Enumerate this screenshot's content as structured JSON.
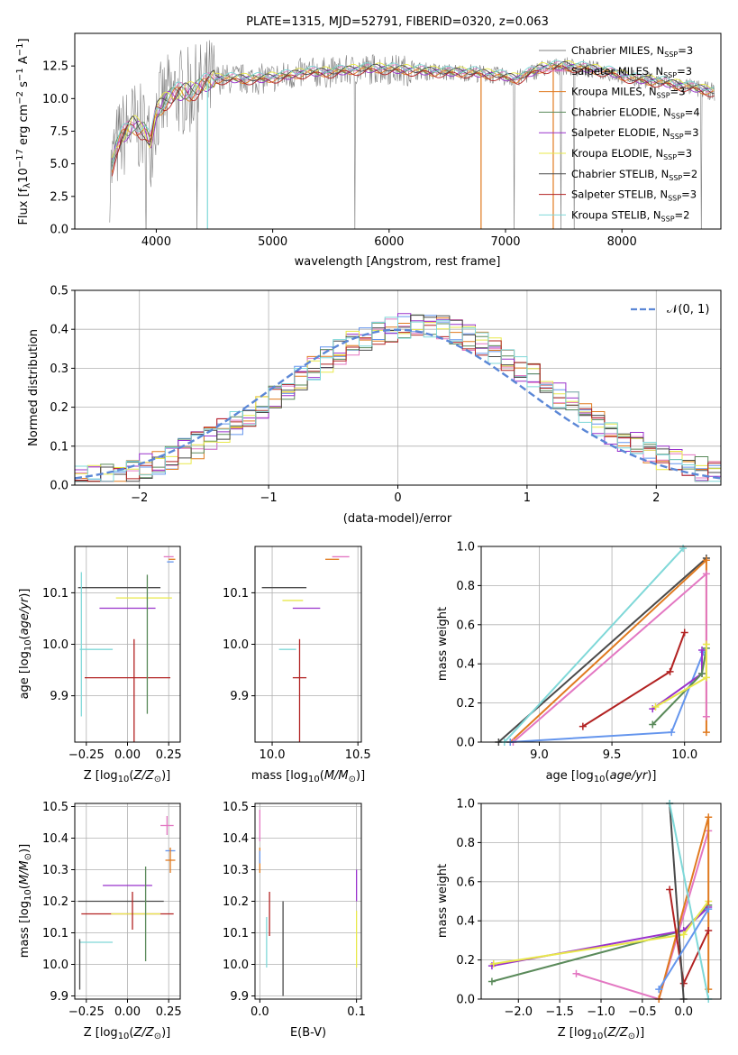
{
  "chart_data": [
    {
      "id": "spectrum",
      "type": "line",
      "title": "PLATE=1315, MJD=52791, FIBERID=0320, z=0.063",
      "xlabel": "wavelength [Angstrom, rest frame]",
      "ylabel": "Flux [f_λ 10^-17 erg cm^-2 s^-1 A^-1]",
      "xlim": [
        3300,
        8850
      ],
      "ylim": [
        0,
        15
      ],
      "xticks": [
        "4000",
        "5000",
        "6000",
        "7000",
        "8000"
      ],
      "yticks": [
        "0.0",
        "2.5",
        "5.0",
        "7.5",
        "10.0",
        "12.5"
      ],
      "grid": false,
      "legend_position": "right",
      "continuum": {
        "x": [
          3600,
          3650,
          3700,
          3800,
          3900,
          3950,
          4000,
          4100,
          4200,
          4300,
          4400,
          4500,
          4700,
          4900,
          5100,
          5300,
          5500,
          5700,
          5900,
          6100,
          6300,
          6500,
          6700,
          6900,
          7100,
          7300,
          7500,
          7700,
          7900,
          8100,
          8300,
          8500,
          8800
        ],
        "y": [
          4.0,
          6.0,
          7.0,
          8.0,
          7.5,
          6.5,
          9.0,
          10.0,
          10.5,
          10.5,
          11.0,
          11.5,
          11.5,
          11.5,
          11.7,
          12.0,
          12.0,
          12.2,
          12.3,
          12.2,
          12.1,
          12.0,
          12.0,
          11.8,
          11.5,
          12.3,
          12.5,
          12.3,
          12.0,
          11.5,
          11.3,
          11.0,
          10.5
        ]
      },
      "series": [
        {
          "name": "Chabrier MILES, N_SSP=3",
          "color": "#808080"
        },
        {
          "name": "Salpeter MILES, N_SSP=3",
          "color": "#e377c2"
        },
        {
          "name": "Kroupa MILES, N_SSP=3",
          "color": "#e07a1f"
        },
        {
          "name": "Chabrier ELODIE, N_SSP=4",
          "color": "#5a8a5a"
        },
        {
          "name": "Salpeter ELODIE, N_SSP=3",
          "color": "#9932cc"
        },
        {
          "name": "Kroupa ELODIE, N_SSP=3",
          "color": "#e8e84a"
        },
        {
          "name": "Chabrier STELIB, N_SSP=2",
          "color": "#4a4a4a"
        },
        {
          "name": "Salpeter STELIB, N_SSP=3",
          "color": "#b22222"
        },
        {
          "name": "Kroupa STELIB, N_SSP=2",
          "color": "#7fd8d8"
        }
      ]
    },
    {
      "id": "residuals",
      "type": "bar",
      "xlabel": "(data-model)/error",
      "ylabel": "Normed distribution",
      "xlim": [
        -2.5,
        2.5
      ],
      "ylim": [
        0,
        0.5
      ],
      "xticks": [
        "−2",
        "−1",
        "0",
        "1",
        "2"
      ],
      "yticks": [
        "0.0",
        "0.1",
        "0.2",
        "0.3",
        "0.4",
        "0.5"
      ],
      "grid": true,
      "legend": "𝒩(0, 1)",
      "legend_position": "top-right",
      "gaussian": {
        "mean": 0,
        "sigma": 1,
        "color": "#5b87d6"
      },
      "histogram_peak_shift": 0.15,
      "histogram_colors": [
        "#6495ed",
        "#e07a1f",
        "#e377c2",
        "#5a8a5a",
        "#9932cc",
        "#e8e84a",
        "#4a4a4a",
        "#b22222",
        "#7fd8d8"
      ]
    },
    {
      "id": "age_vs_Z",
      "type": "scatter",
      "xlabel": "Z [log10(Z/Z☉)]",
      "ylabel": "age [log10(age/yr)]",
      "xlim": [
        -0.32,
        0.32
      ],
      "ylim": [
        9.81,
        10.19
      ],
      "xticks": [
        "−0.25",
        "0.00",
        "0.25"
      ],
      "yticks": [
        "9.9",
        "10.0",
        "10.1"
      ],
      "grid": true,
      "points": [
        {
          "x": -0.05,
          "y": 10.11,
          "xerr": 0.25,
          "yerr": 0.0,
          "color": "#4a4a4a"
        },
        {
          "x": 0.1,
          "y": 10.09,
          "xerr": 0.17,
          "yerr": 0.0,
          "color": "#e8e84a"
        },
        {
          "x": 0.0,
          "y": 10.07,
          "xerr": 0.17,
          "yerr": 0.0,
          "color": "#9932cc"
        },
        {
          "x": -0.19,
          "y": 9.99,
          "xerr": 0.1,
          "yerr": 0.0,
          "color": "#7fd8d8"
        },
        {
          "x": 0.0,
          "y": 9.935,
          "xerr": 0.26,
          "yerr": 0.0,
          "color": "#b22222"
        },
        {
          "x": 0.04,
          "y": 9.91,
          "xerr": 0.0,
          "yerr": 0.1,
          "color": "#b22222"
        },
        {
          "x": 0.12,
          "y": 10.0,
          "xerr": 0.0,
          "yerr": 0.135,
          "color": "#5a8a5a"
        },
        {
          "x": -0.28,
          "y": 10.0,
          "xerr": 0.0,
          "yerr": 0.14,
          "color": "#7fd8d8"
        },
        {
          "x": 0.25,
          "y": 10.17,
          "xerr": 0.03,
          "yerr": 0.0,
          "color": "#e377c2"
        },
        {
          "x": 0.26,
          "y": 10.16,
          "xerr": 0.02,
          "yerr": 0.0,
          "color": "#6495ed"
        },
        {
          "x": 0.27,
          "y": 10.165,
          "xerr": 0.02,
          "yerr": 0.0,
          "color": "#e07a1f"
        }
      ]
    },
    {
      "id": "age_vs_mass",
      "type": "scatter",
      "xlabel": "mass [log10(M/M☉)]",
      "xlim": [
        9.9,
        10.52
      ],
      "ylim": [
        9.81,
        10.19
      ],
      "xticks": [
        "10.0",
        "10.5"
      ],
      "yticks": [
        "9.9",
        "10.0",
        "10.1"
      ],
      "grid": true,
      "points": [
        {
          "x": 10.07,
          "y": 10.11,
          "xerr": 0.13,
          "yerr": 0.0,
          "color": "#4a4a4a"
        },
        {
          "x": 10.12,
          "y": 10.085,
          "xerr": 0.06,
          "yerr": 0.0,
          "color": "#e8e84a"
        },
        {
          "x": 10.2,
          "y": 10.07,
          "xerr": 0.08,
          "yerr": 0.0,
          "color": "#9932cc"
        },
        {
          "x": 10.09,
          "y": 9.99,
          "xerr": 0.05,
          "yerr": 0.0,
          "color": "#7fd8d8"
        },
        {
          "x": 10.16,
          "y": 9.935,
          "xerr": 0.04,
          "yerr": 0.0,
          "color": "#b22222"
        },
        {
          "x": 10.16,
          "y": 9.91,
          "xerr": 0.0,
          "yerr": 0.1,
          "color": "#b22222"
        },
        {
          "x": 10.35,
          "y": 10.165,
          "xerr": 0.04,
          "yerr": 0.0,
          "color": "#e07a1f"
        },
        {
          "x": 10.4,
          "y": 10.17,
          "xerr": 0.05,
          "yerr": 0.0,
          "color": "#e377c2"
        }
      ]
    },
    {
      "id": "massweight_vs_age",
      "type": "line",
      "xlabel": "age [log10(age/yr)]",
      "ylabel": "mass weight",
      "xlim": [
        8.6,
        10.25
      ],
      "ylim": [
        0,
        1
      ],
      "xticks": [
        "9.0",
        "9.5",
        "10.0"
      ],
      "yticks": [
        "0.0",
        "0.2",
        "0.4",
        "0.6",
        "0.8",
        "1.0"
      ],
      "grid": true,
      "series": [
        {
          "color": "#4a4a4a",
          "x": [
            8.72,
            10.15
          ],
          "y": [
            0.0,
            0.94
          ]
        },
        {
          "color": "#7fd8d8",
          "x": [
            8.76,
            9.99
          ],
          "y": [
            0.0,
            0.99
          ]
        },
        {
          "color": "#e07a1f",
          "x": [
            8.8,
            10.15,
            10.15
          ],
          "y": [
            0.0,
            0.93,
            0.05
          ]
        },
        {
          "color": "#e377c2",
          "x": [
            8.82,
            10.15,
            10.15
          ],
          "y": [
            0.0,
            0.86,
            0.13
          ]
        },
        {
          "color": "#6495ed",
          "x": [
            8.8,
            9.91,
            10.13
          ],
          "y": [
            0.0,
            0.05,
            0.46
          ]
        },
        {
          "color": "#b22222",
          "x": [
            9.3,
            9.9,
            10.0
          ],
          "y": [
            0.08,
            0.36,
            0.56
          ]
        },
        {
          "color": "#9932cc",
          "x": [
            9.78,
            10.12,
            10.12
          ],
          "y": [
            0.17,
            0.35,
            0.47
          ]
        },
        {
          "color": "#5a8a5a",
          "x": [
            9.78,
            10.12,
            10.15
          ],
          "y": [
            0.09,
            0.35,
            0.48
          ]
        },
        {
          "color": "#e8e84a",
          "x": [
            9.8,
            10.15,
            10.15
          ],
          "y": [
            0.18,
            0.33,
            0.5
          ]
        }
      ]
    },
    {
      "id": "mass_vs_Z",
      "type": "scatter",
      "xlabel": "Z [log10(Z/Z☉)]",
      "ylabel": "mass [log10(M/M☉)]",
      "xlim": [
        -0.32,
        0.32
      ],
      "ylim": [
        9.89,
        10.51
      ],
      "xticks": [
        "−0.25",
        "0.00",
        "0.25"
      ],
      "yticks": [
        "9.9",
        "10.0",
        "10.1",
        "10.2",
        "10.3",
        "10.4",
        "10.5"
      ],
      "grid": true,
      "points": [
        {
          "x": 0.0,
          "y": 10.25,
          "xerr": 0.15,
          "yerr": 0.0,
          "color": "#9932cc"
        },
        {
          "x": -0.04,
          "y": 10.2,
          "xerr": 0.26,
          "yerr": 0.0,
          "color": "#4a4a4a"
        },
        {
          "x": 0.0,
          "y": 10.16,
          "xerr": 0.28,
          "yerr": 0.0,
          "color": "#b22222"
        },
        {
          "x": 0.05,
          "y": 10.16,
          "xerr": 0.15,
          "yerr": 0.0,
          "color": "#e8e84a"
        },
        {
          "x": -0.19,
          "y": 10.07,
          "xerr": 0.1,
          "yerr": 0.0,
          "color": "#7fd8d8"
        },
        {
          "x": 0.11,
          "y": 10.16,
          "xerr": 0.0,
          "yerr": 0.15,
          "color": "#5a8a5a"
        },
        {
          "x": 0.03,
          "y": 10.17,
          "xerr": 0.0,
          "yerr": 0.06,
          "color": "#b22222"
        },
        {
          "x": -0.29,
          "y": 10.0,
          "xerr": 0.0,
          "yerr": 0.08,
          "color": "#4a4a4a"
        },
        {
          "x": 0.24,
          "y": 10.44,
          "xerr": 0.04,
          "yerr": 0.03,
          "color": "#e377c2"
        },
        {
          "x": 0.26,
          "y": 10.36,
          "xerr": 0.03,
          "yerr": 0.0,
          "color": "#6495ed"
        },
        {
          "x": 0.26,
          "y": 10.33,
          "xerr": 0.03,
          "yerr": 0.04,
          "color": "#e07a1f"
        }
      ]
    },
    {
      "id": "mass_vs_EBV",
      "type": "scatter",
      "xlabel": "E(B-V)",
      "xlim": [
        -0.005,
        0.105
      ],
      "ylim": [
        9.89,
        10.51
      ],
      "xticks": [
        "0.0",
        "0.1"
      ],
      "yticks": [
        "9.9",
        "10.0",
        "10.1",
        "10.2",
        "10.3",
        "10.4",
        "10.5"
      ],
      "grid": true,
      "points": [
        {
          "x": 0.0,
          "y": 10.44,
          "xerr": 0.0,
          "yerr": 0.05,
          "color": "#e377c2"
        },
        {
          "x": 0.0,
          "y": 10.33,
          "xerr": 0.0,
          "yerr": 0.04,
          "color": "#e07a1f"
        },
        {
          "x": 0.0,
          "y": 10.34,
          "xerr": 0.0,
          "yerr": 0.02,
          "color": "#6495ed"
        },
        {
          "x": 0.007,
          "y": 10.07,
          "xerr": 0.0,
          "yerr": 0.08,
          "color": "#7fd8d8"
        },
        {
          "x": 0.01,
          "y": 10.16,
          "xerr": 0.0,
          "yerr": 0.07,
          "color": "#b22222"
        },
        {
          "x": 0.024,
          "y": 10.05,
          "xerr": 0.0,
          "yerr": 0.15,
          "color": "#4a4a4a"
        },
        {
          "x": 0.1,
          "y": 10.25,
          "xerr": 0.0,
          "yerr": 0.05,
          "color": "#9932cc"
        },
        {
          "x": 0.1,
          "y": 10.08,
          "xerr": 0.0,
          "yerr": 0.09,
          "color": "#e8e84a"
        }
      ]
    },
    {
      "id": "massweight_vs_Z",
      "type": "line",
      "xlabel": "Z [log10(Z/Z☉)]",
      "ylabel": "mass weight",
      "xlim": [
        -2.45,
        0.45
      ],
      "ylim": [
        0,
        1
      ],
      "xticks": [
        "−2.0",
        "−1.5",
        "−1.0",
        "−0.5",
        "0.0"
      ],
      "yticks": [
        "0.0",
        "0.2",
        "0.4",
        "0.6",
        "0.8",
        "1.0"
      ],
      "grid": true,
      "series": [
        {
          "color": "#5a8a5a",
          "x": [
            -2.32,
            0.0,
            0.3
          ],
          "y": [
            0.09,
            0.35,
            0.48
          ]
        },
        {
          "color": "#9932cc",
          "x": [
            -2.32,
            0.0,
            0.3
          ],
          "y": [
            0.17,
            0.35,
            0.47
          ]
        },
        {
          "color": "#e8e84a",
          "x": [
            -2.3,
            0.0,
            0.3
          ],
          "y": [
            0.18,
            0.33,
            0.5
          ]
        },
        {
          "color": "#e377c2",
          "x": [
            -1.3,
            -0.3,
            0.3
          ],
          "y": [
            0.13,
            0.0,
            0.86
          ]
        },
        {
          "color": "#e07a1f",
          "x": [
            -0.3,
            0.3,
            0.3
          ],
          "y": [
            0.0,
            0.93,
            0.05
          ]
        },
        {
          "color": "#b22222",
          "x": [
            -0.17,
            0.0,
            0.3
          ],
          "y": [
            0.56,
            0.08,
            0.35
          ]
        },
        {
          "color": "#4a4a4a",
          "x": [
            -0.17,
            0.0
          ],
          "y": [
            1.0,
            0.0
          ]
        },
        {
          "color": "#7fd8d8",
          "x": [
            -0.17,
            0.3
          ],
          "y": [
            1.0,
            0.0
          ]
        },
        {
          "color": "#6495ed",
          "x": [
            -0.3,
            0.3
          ],
          "y": [
            0.05,
            0.46
          ]
        }
      ]
    }
  ]
}
